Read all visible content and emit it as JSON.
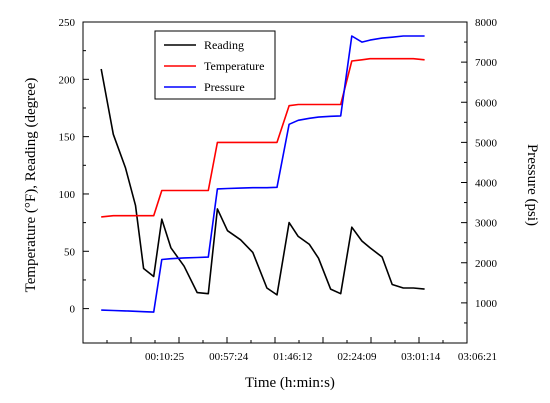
{
  "chart_data": {
    "type": "line",
    "title": "",
    "xlabel": "Time (h:min:s)",
    "ylabel_left": "Temperature (°F), Reading (degree)",
    "ylabel_right": "Pressure (psi)",
    "x_tick_labels": [
      "00:10:25",
      "00:57:24",
      "01:46:12",
      "02:24:09",
      "03:01:14",
      "03:06:21"
    ],
    "xlim": [
      0,
      38
    ],
    "ylim_left": [
      -30,
      250
    ],
    "ylim_right": [
      0,
      8000
    ],
    "yticks_left": [
      0,
      50,
      100,
      150,
      200,
      250
    ],
    "yticks_right": [
      1000,
      2000,
      3000,
      4000,
      5000,
      6000,
      7000,
      8000
    ],
    "legend_position": "top-center",
    "series": [
      {
        "name": "Reading",
        "color": "#000000",
        "axis": "left",
        "x": [
          1.8,
          3.0,
          4.2,
          5.2,
          6.0,
          7.0,
          7.8,
          8.7,
          10.0,
          11.3,
          12.4,
          13.3,
          14.3,
          15.6,
          16.8,
          18.2,
          19.2,
          20.4,
          21.3,
          22.4,
          23.3,
          24.5,
          25.5,
          26.6,
          27.6,
          28.4,
          29.6,
          30.6,
          31.7,
          32.7,
          33.8
        ],
        "values": [
          209,
          152,
          123,
          90,
          35,
          28,
          78,
          53,
          37,
          14,
          13,
          87,
          68,
          60,
          49,
          18,
          12,
          75,
          63,
          56,
          44,
          17,
          13,
          71,
          59,
          53,
          45,
          21,
          18,
          18,
          17
        ]
      },
      {
        "name": "Temperature",
        "color": "#ff0000",
        "axis": "left",
        "x": [
          1.8,
          3.0,
          4.2,
          5.2,
          6.0,
          7.0,
          7.8,
          8.7,
          10.0,
          11.3,
          12.4,
          13.3,
          14.3,
          15.6,
          16.8,
          18.2,
          19.2,
          20.4,
          21.3,
          22.4,
          23.3,
          24.5,
          25.5,
          26.6,
          27.6,
          28.4,
          29.6,
          30.6,
          31.7,
          32.7,
          33.8
        ],
        "values": [
          80,
          81,
          81,
          81,
          81,
          81,
          103,
          103,
          103,
          103,
          103,
          145,
          145,
          145,
          145,
          145,
          145,
          177,
          178,
          178,
          178,
          178,
          178,
          216,
          217,
          218,
          218,
          218,
          218,
          218,
          217
        ]
      },
      {
        "name": "Pressure",
        "color": "#0000ff",
        "axis": "right",
        "x": [
          1.8,
          3.0,
          4.2,
          5.2,
          6.0,
          7.0,
          7.8,
          8.7,
          10.0,
          11.3,
          12.4,
          13.3,
          14.3,
          15.6,
          16.8,
          18.2,
          19.2,
          20.4,
          21.3,
          22.4,
          23.3,
          24.5,
          25.5,
          26.6,
          27.6,
          28.4,
          29.6,
          30.6,
          31.7,
          32.7,
          33.8
        ],
        "values": [
          820,
          810,
          800,
          790,
          780,
          770,
          2080,
          2100,
          2120,
          2130,
          2140,
          3840,
          3850,
          3860,
          3870,
          3870,
          3880,
          5450,
          5550,
          5600,
          5630,
          5650,
          5660,
          7650,
          7500,
          7550,
          7600,
          7620,
          7650,
          7650,
          7650
        ]
      }
    ]
  }
}
